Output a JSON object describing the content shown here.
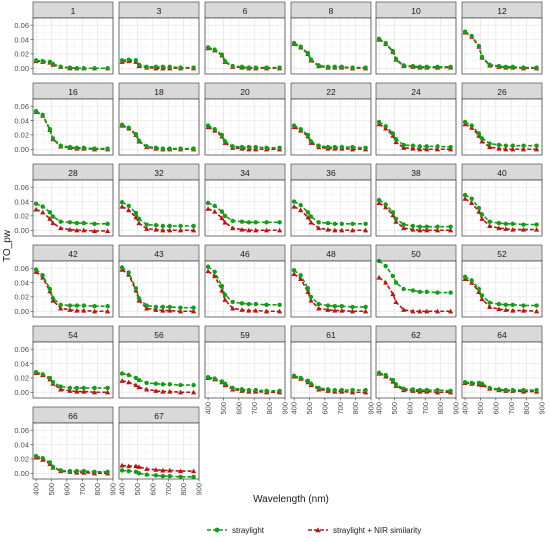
{
  "chart_data": {
    "type": "line",
    "title": "",
    "xlabel": "Wavelength (nm)",
    "ylabel": "TO_pw",
    "x": [
      400,
      443,
      490,
      510,
      560,
      620,
      665,
      710,
      780,
      865
    ],
    "xticks": [
      "400",
      "500",
      "600",
      "700",
      "800",
      "900"
    ],
    "xlim": [
      380,
      900
    ],
    "yticks": [
      "0.00",
      "0.02",
      "0.04",
      "0.06"
    ],
    "ylim": [
      -0.008,
      0.07
    ],
    "grid": true,
    "legend_position": "bottom",
    "series": [
      {
        "name": "straylight",
        "color": "#1a9a1a",
        "marker": "circle",
        "linestyle": "dashed"
      },
      {
        "name": "straylight + NIR similarity",
        "color": "#b01a1a",
        "marker": "triangle",
        "linestyle": "dashed"
      }
    ],
    "panels": [
      {
        "label": "1",
        "straylight": [
          0.011,
          0.01,
          0.009,
          0.006,
          0.002,
          0.001,
          0.0,
          0.0,
          0.0,
          0.0
        ],
        "nir": [
          0.01,
          0.009,
          0.008,
          0.005,
          0.002,
          0.0,
          0.0,
          0.0,
          0.0,
          0.0
        ]
      },
      {
        "label": "3",
        "straylight": [
          0.011,
          0.012,
          0.011,
          0.005,
          0.002,
          0.002,
          0.002,
          0.002,
          0.001,
          0.001
        ],
        "nir": [
          0.009,
          0.01,
          0.009,
          0.003,
          0.001,
          0.0,
          0.0,
          0.0,
          0.0,
          0.0
        ]
      },
      {
        "label": "6",
        "straylight": [
          0.029,
          0.026,
          0.019,
          0.01,
          0.003,
          0.002,
          0.001,
          0.001,
          0.001,
          0.001
        ],
        "nir": [
          0.028,
          0.025,
          0.018,
          0.009,
          0.002,
          0.001,
          0.0,
          0.0,
          0.0,
          0.0
        ]
      },
      {
        "label": "8",
        "straylight": [
          0.035,
          0.03,
          0.021,
          0.012,
          0.004,
          0.002,
          0.002,
          0.002,
          0.001,
          0.001
        ],
        "nir": [
          0.034,
          0.029,
          0.02,
          0.011,
          0.003,
          0.001,
          0.001,
          0.001,
          0.0,
          0.0
        ]
      },
      {
        "label": "10",
        "straylight": [
          0.041,
          0.035,
          0.024,
          0.013,
          0.004,
          0.003,
          0.002,
          0.002,
          0.002,
          0.002
        ],
        "nir": [
          0.04,
          0.034,
          0.023,
          0.012,
          0.003,
          0.002,
          0.001,
          0.001,
          0.001,
          0.001
        ]
      },
      {
        "label": "12",
        "straylight": [
          0.051,
          0.045,
          0.031,
          0.016,
          0.005,
          0.003,
          0.002,
          0.002,
          0.001,
          0.001
        ],
        "nir": [
          0.05,
          0.044,
          0.03,
          0.015,
          0.004,
          0.002,
          0.001,
          0.001,
          0.0,
          0.0
        ]
      },
      {
        "label": "16",
        "straylight": [
          0.053,
          0.048,
          0.028,
          0.015,
          0.005,
          0.003,
          0.002,
          0.002,
          0.001,
          0.001
        ],
        "nir": [
          0.052,
          0.047,
          0.027,
          0.014,
          0.004,
          0.002,
          0.001,
          0.001,
          0.0,
          0.0
        ]
      },
      {
        "label": "18",
        "straylight": [
          0.034,
          0.03,
          0.021,
          0.012,
          0.004,
          0.002,
          0.001,
          0.001,
          0.001,
          0.001
        ],
        "nir": [
          0.033,
          0.029,
          0.02,
          0.011,
          0.003,
          0.001,
          0.0,
          0.0,
          0.0,
          0.0
        ]
      },
      {
        "label": "20",
        "straylight": [
          0.033,
          0.028,
          0.02,
          0.011,
          0.004,
          0.003,
          0.003,
          0.003,
          0.002,
          0.002
        ],
        "nir": [
          0.031,
          0.026,
          0.018,
          0.009,
          0.002,
          0.001,
          0.0,
          0.0,
          0.0,
          0.0
        ]
      },
      {
        "label": "22",
        "straylight": [
          0.033,
          0.028,
          0.02,
          0.011,
          0.005,
          0.003,
          0.003,
          0.003,
          0.003,
          0.002
        ],
        "nir": [
          0.031,
          0.026,
          0.018,
          0.009,
          0.003,
          0.001,
          0.001,
          0.001,
          0.0,
          0.0
        ]
      },
      {
        "label": "24",
        "straylight": [
          0.038,
          0.032,
          0.022,
          0.014,
          0.006,
          0.005,
          0.004,
          0.004,
          0.004,
          0.003
        ],
        "nir": [
          0.035,
          0.029,
          0.019,
          0.01,
          0.002,
          0.001,
          0.0,
          0.0,
          0.0,
          0.0
        ]
      },
      {
        "label": "26",
        "straylight": [
          0.038,
          0.033,
          0.022,
          0.015,
          0.008,
          0.006,
          0.005,
          0.005,
          0.005,
          0.005
        ],
        "nir": [
          0.035,
          0.03,
          0.019,
          0.011,
          0.003,
          0.001,
          0.0,
          0.0,
          0.0,
          0.0
        ]
      },
      {
        "label": "28",
        "straylight": [
          0.037,
          0.033,
          0.025,
          0.019,
          0.012,
          0.011,
          0.01,
          0.01,
          0.009,
          0.009
        ],
        "nir": [
          0.029,
          0.025,
          0.016,
          0.01,
          0.003,
          0.001,
          0.0,
          0.0,
          -0.001,
          -0.001
        ]
      },
      {
        "label": "32",
        "straylight": [
          0.039,
          0.034,
          0.024,
          0.016,
          0.008,
          0.007,
          0.006,
          0.006,
          0.006,
          0.006
        ],
        "nir": [
          0.033,
          0.028,
          0.018,
          0.01,
          0.002,
          0.001,
          0.0,
          0.0,
          0.0,
          0.0
        ]
      },
      {
        "label": "34",
        "straylight": [
          0.038,
          0.034,
          0.026,
          0.02,
          0.013,
          0.012,
          0.011,
          0.011,
          0.011,
          0.011
        ],
        "nir": [
          0.03,
          0.026,
          0.017,
          0.011,
          0.003,
          0.001,
          0.0,
          0.0,
          0.0,
          0.0
        ]
      },
      {
        "label": "36",
        "straylight": [
          0.04,
          0.035,
          0.025,
          0.019,
          0.011,
          0.01,
          0.009,
          0.009,
          0.009,
          0.009
        ],
        "nir": [
          0.033,
          0.028,
          0.018,
          0.011,
          0.003,
          0.001,
          0.0,
          0.0,
          0.0,
          0.0
        ]
      },
      {
        "label": "38",
        "straylight": [
          0.042,
          0.036,
          0.025,
          0.016,
          0.008,
          0.006,
          0.005,
          0.005,
          0.005,
          0.005
        ],
        "nir": [
          0.038,
          0.032,
          0.021,
          0.012,
          0.003,
          0.001,
          0.0,
          0.0,
          0.0,
          0.0
        ]
      },
      {
        "label": "40",
        "straylight": [
          0.049,
          0.044,
          0.031,
          0.022,
          0.012,
          0.01,
          0.009,
          0.009,
          0.008,
          0.008
        ],
        "nir": [
          0.044,
          0.038,
          0.026,
          0.016,
          0.006,
          0.003,
          0.002,
          0.001,
          0.001,
          0.001
        ]
      },
      {
        "label": "42",
        "straylight": [
          0.058,
          0.05,
          0.031,
          0.018,
          0.009,
          0.008,
          0.008,
          0.008,
          0.007,
          0.007
        ],
        "nir": [
          0.055,
          0.047,
          0.028,
          0.015,
          0.004,
          0.002,
          0.001,
          0.001,
          0.0,
          0.0
        ]
      },
      {
        "label": "43",
        "straylight": [
          0.061,
          0.054,
          0.032,
          0.018,
          0.008,
          0.006,
          0.006,
          0.006,
          0.005,
          0.005
        ],
        "nir": [
          0.058,
          0.051,
          0.029,
          0.015,
          0.004,
          0.002,
          0.001,
          0.001,
          0.0,
          0.0
        ]
      },
      {
        "label": "46",
        "straylight": [
          0.062,
          0.055,
          0.035,
          0.023,
          0.013,
          0.011,
          0.01,
          0.01,
          0.009,
          0.009
        ],
        "nir": [
          0.056,
          0.049,
          0.029,
          0.016,
          0.004,
          0.002,
          0.001,
          0.001,
          0.0,
          0.0
        ]
      },
      {
        "label": "48",
        "straylight": [
          0.057,
          0.05,
          0.032,
          0.02,
          0.01,
          0.008,
          0.007,
          0.007,
          0.006,
          0.006
        ],
        "nir": [
          0.052,
          0.045,
          0.027,
          0.015,
          0.004,
          0.002,
          0.001,
          0.001,
          0.0,
          0.0
        ]
      },
      {
        "label": "50",
        "straylight": [
          0.07,
          0.063,
          0.049,
          0.04,
          0.031,
          0.029,
          0.027,
          0.027,
          0.026,
          0.026
        ],
        "nir": [
          0.047,
          0.04,
          0.024,
          0.013,
          0.002,
          0.0,
          0.0,
          0.0,
          0.0,
          0.0
        ]
      },
      {
        "label": "52",
        "straylight": [
          0.048,
          0.043,
          0.031,
          0.022,
          0.012,
          0.01,
          0.009,
          0.009,
          0.008,
          0.008
        ],
        "nir": [
          0.045,
          0.04,
          0.027,
          0.017,
          0.006,
          0.003,
          0.002,
          0.001,
          0.001,
          0.0
        ]
      },
      {
        "label": "54",
        "straylight": [
          0.028,
          0.025,
          0.02,
          0.014,
          0.008,
          0.006,
          0.006,
          0.006,
          0.006,
          0.006
        ],
        "nir": [
          0.027,
          0.024,
          0.018,
          0.012,
          0.004,
          0.002,
          0.001,
          0.001,
          0.0,
          0.0
        ]
      },
      {
        "label": "56",
        "straylight": [
          0.026,
          0.024,
          0.02,
          0.017,
          0.013,
          0.012,
          0.011,
          0.011,
          0.01,
          0.01
        ],
        "nir": [
          0.016,
          0.014,
          0.01,
          0.007,
          0.004,
          0.002,
          0.001,
          0.001,
          0.0,
          0.0
        ]
      },
      {
        "label": "59",
        "straylight": [
          0.021,
          0.019,
          0.015,
          0.012,
          0.006,
          0.004,
          0.003,
          0.003,
          0.002,
          0.002
        ],
        "nir": [
          0.02,
          0.018,
          0.014,
          0.01,
          0.004,
          0.002,
          0.001,
          0.001,
          0.0,
          0.0
        ]
      },
      {
        "label": "61",
        "straylight": [
          0.023,
          0.02,
          0.016,
          0.012,
          0.006,
          0.004,
          0.003,
          0.003,
          0.003,
          0.003
        ],
        "nir": [
          0.022,
          0.019,
          0.014,
          0.01,
          0.004,
          0.002,
          0.001,
          0.001,
          0.0,
          0.0
        ]
      },
      {
        "label": "62",
        "straylight": [
          0.027,
          0.024,
          0.017,
          0.011,
          0.005,
          0.004,
          0.003,
          0.003,
          0.003,
          0.002
        ],
        "nir": [
          0.026,
          0.022,
          0.015,
          0.009,
          0.003,
          0.002,
          0.001,
          0.001,
          0.0,
          0.0
        ]
      },
      {
        "label": "64",
        "straylight": [
          0.014,
          0.013,
          0.013,
          0.012,
          0.006,
          0.004,
          0.003,
          0.003,
          0.003,
          0.003
        ],
        "nir": [
          0.013,
          0.012,
          0.011,
          0.01,
          0.005,
          0.003,
          0.002,
          0.002,
          0.001,
          0.001
        ]
      },
      {
        "label": "66",
        "straylight": [
          0.024,
          0.021,
          0.015,
          0.009,
          0.004,
          0.003,
          0.003,
          0.003,
          0.002,
          0.002
        ],
        "nir": [
          0.022,
          0.019,
          0.013,
          0.008,
          0.003,
          0.002,
          0.001,
          0.001,
          0.0,
          0.0
        ]
      },
      {
        "label": "67",
        "straylight": [
          0.004,
          0.003,
          0.002,
          0.0,
          -0.002,
          -0.003,
          -0.004,
          -0.004,
          -0.005,
          -0.005
        ],
        "nir": [
          0.011,
          0.01,
          0.01,
          0.009,
          0.006,
          0.005,
          0.004,
          0.004,
          0.003,
          0.003
        ]
      }
    ]
  }
}
